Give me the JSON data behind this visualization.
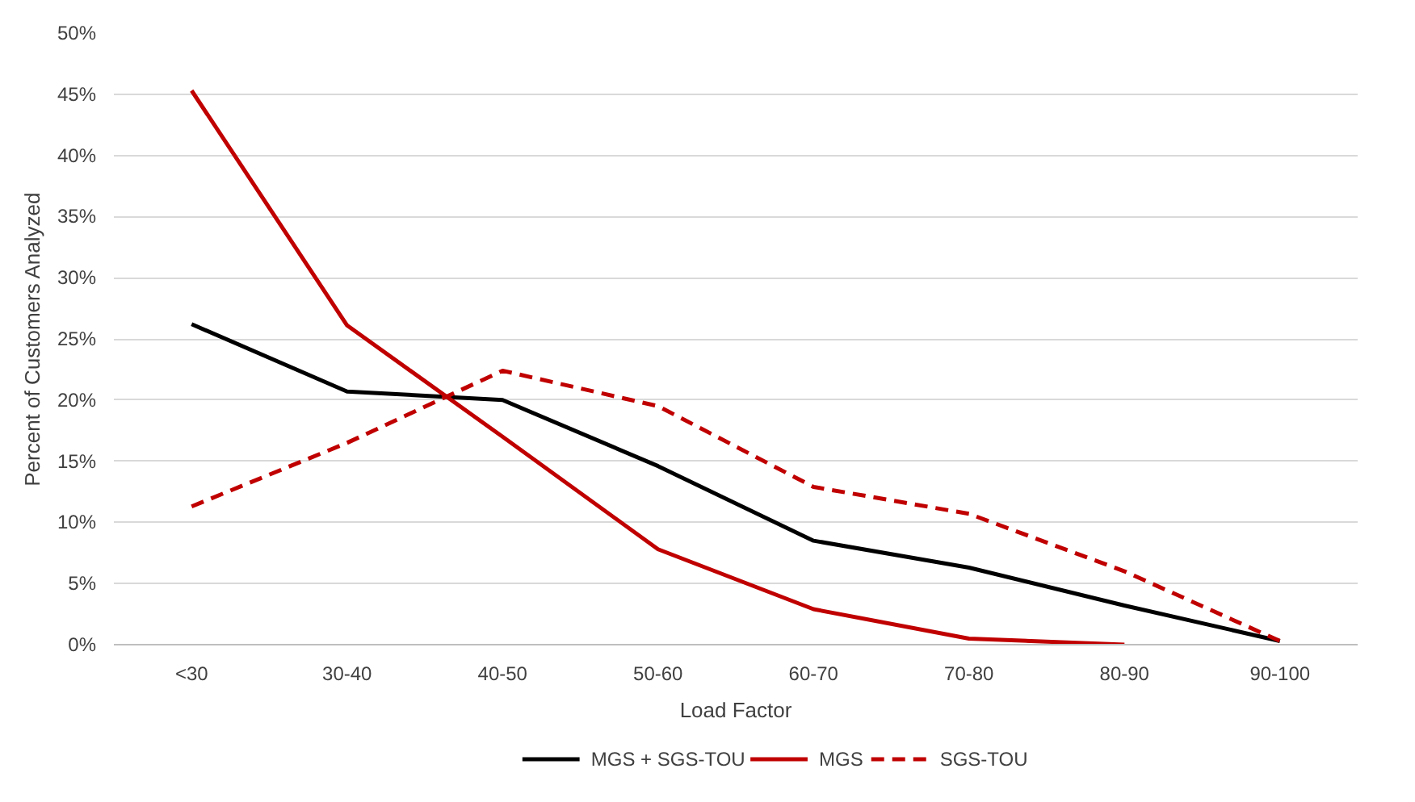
{
  "chart_data": {
    "type": "line",
    "xlabel": "Load Factor",
    "ylabel": "Percent of Customers Analyzed",
    "categories": [
      "<30",
      "30-40",
      "40-50",
      "50-60",
      "60-70",
      "70-80",
      "80-90",
      "90-100"
    ],
    "series": [
      {
        "name": "MGS + SGS-TOU",
        "color": "#000000",
        "line_style": "solid",
        "values": [
          26.2,
          20.7,
          20.0,
          14.6,
          8.5,
          6.3,
          3.2,
          0.3
        ]
      },
      {
        "name": "MGS",
        "color": "#c00000",
        "line_style": "solid",
        "values": [
          45.3,
          26.1,
          17.0,
          7.8,
          2.9,
          0.5,
          0,
          null
        ]
      },
      {
        "name": "SGS-TOU",
        "color": "#c00000",
        "line_style": "dashed",
        "values": [
          11.3,
          16.5,
          22.4,
          19.5,
          12.9,
          10.7,
          6.0,
          0.3
        ]
      }
    ],
    "ylim": [
      0,
      50
    ],
    "yticks": [
      {
        "value": 0,
        "label": "0%"
      },
      {
        "value": 5,
        "label": "5%"
      },
      {
        "value": 10,
        "label": "10%"
      },
      {
        "value": 15,
        "label": "15%"
      },
      {
        "value": 20,
        "label": "20%"
      },
      {
        "value": 25,
        "label": "25%"
      },
      {
        "value": 30,
        "label": "30%"
      },
      {
        "value": 35,
        "label": "35%"
      },
      {
        "value": 40,
        "label": "40%"
      },
      {
        "value": 45,
        "label": "45%"
      },
      {
        "value": 50,
        "label": "50%"
      }
    ],
    "grid": "y",
    "legend": "bottom",
    "marker": "none"
  }
}
